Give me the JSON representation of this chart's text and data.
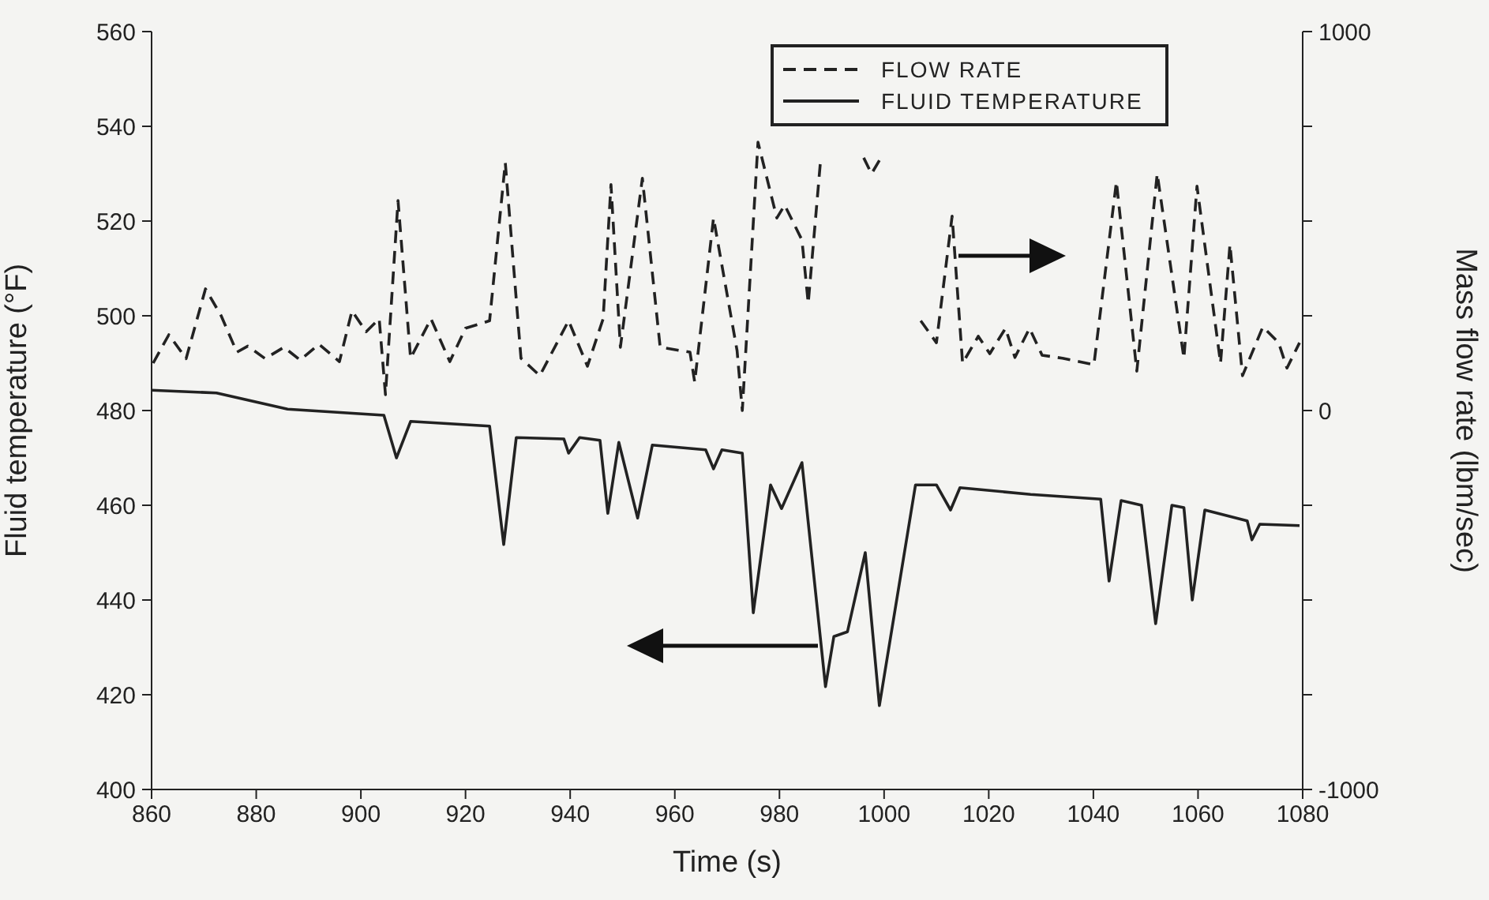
{
  "chart_data": {
    "type": "line",
    "xlabel": "Time (s)",
    "ylabel": "Fluid temperature (°F)",
    "y2label": "Mass flow rate (lbm/sec)",
    "xlim": [
      860,
      1080
    ],
    "xticks": [
      860,
      880,
      900,
      920,
      940,
      960,
      980,
      1000,
      1020,
      1040,
      1060,
      1080
    ],
    "ylim": [
      400,
      560
    ],
    "yticks": [
      400,
      420,
      440,
      460,
      480,
      500,
      520,
      540,
      560
    ],
    "y2lim": [
      -1000,
      1000
    ],
    "y2ticks": [
      -1000,
      {
        "value": -750,
        "label": null
      },
      {
        "value": -500,
        "label": null
      },
      {
        "value": -250,
        "label": null
      },
      0,
      {
        "value": 250,
        "label": null
      },
      {
        "value": 500,
        "label": null
      },
      {
        "value": 750,
        "label": null
      },
      1000
    ],
    "legend": "top right",
    "grid": false,
    "series": [
      {
        "name": "FLOW RATE",
        "color": "#222222",
        "axis": "y2",
        "line_style": "dashed",
        "x": [
          860.3,
          863.3,
          866.6,
          870.3,
          873.3,
          876.3,
          878.4,
          881.7,
          885.3,
          888.4,
          892,
          895.9,
          898.3,
          901,
          903.5,
          904.7,
          907.1,
          909.5,
          913.4,
          917,
          920,
          924.6,
          927.6,
          930.6,
          934.2,
          937.5,
          939.7,
          943.3,
          946.3,
          947.8,
          949.6,
          953.8,
          957.2,
          962.9,
          963.8,
          967.4,
          971.9,
          972.9,
          975.9,
          979.5,
          981,
          984.3,
          985.5,
          987.9,
          991,
          996.1,
          997.6,
          999.4,
          1002,
          1007,
          1010,
          1013,
          1015,
          1018,
          1020.2,
          1023.2,
          1025,
          1027.8,
          1030.2,
          1034.1,
          1040.1,
          1044.4,
          1048.3,
          1052.2,
          1057.3,
          1059.8,
          1064.3,
          1066.1,
          1068.5,
          1072.4,
          1075.4,
          1077,
          1079.4
        ],
        "values": [
          125,
          200,
          137,
          321,
          250,
          154,
          170,
          137,
          167,
          133,
          175,
          129,
          263,
          208,
          242,
          42,
          554,
          138,
          242,
          129,
          217,
          237,
          654,
          138,
          92,
          179,
          237,
          117,
          242,
          596,
          167,
          613,
          167,
          154,
          75,
          508,
          158,
          0,
          708,
          508,
          542,
          450,
          283,
          667,
          null,
          667,
          625,
          667,
          null,
          237,
          179,
          513,
          125,
          196,
          150,
          217,
          140,
          217,
          146,
          138,
          121,
          604,
          104,
          625,
          138,
          592,
          125,
          438,
          92,
          221,
          179,
          112,
          179
        ]
      },
      {
        "name": "FLUID TEMPERATURE",
        "color": "#222222",
        "line_style": "solid",
        "x": [
          860,
          872.4,
          886,
          904.4,
          906.8,
          909.5,
          924.6,
          927.3,
          929.7,
          938.8,
          939.7,
          941.8,
          945.7,
          947.2,
          949.3,
          952.9,
          955.7,
          965.9,
          967.4,
          969,
          972.9,
          975,
          978.3,
          980.4,
          984.3,
          988.8,
          990.4,
          993,
          996.4,
          999.1,
          1006,
          1010,
          1012.7,
          1014.5,
          1028,
          1041.4,
          1043,
          1045.3,
          1049.2,
          1051.9,
          1055,
          1057.3,
          1058.9,
          1061.3,
          1069.4,
          1070.3,
          1071.8,
          1079.4
        ],
        "values": [
          484.3,
          483.7,
          480.3,
          479,
          470,
          477.7,
          476.7,
          451.7,
          474.3,
          474,
          471,
          474.3,
          473.7,
          458.3,
          473.3,
          457.3,
          472.7,
          471.7,
          467.7,
          471.7,
          471,
          437.3,
          464.3,
          459.3,
          469,
          421.7,
          432.3,
          433.3,
          450,
          417.7,
          464.3,
          464.3,
          459,
          463.7,
          462.3,
          461.3,
          444,
          461,
          460,
          435,
          460,
          459.5,
          440,
          459,
          456.7,
          452.7,
          456,
          455.7
        ]
      }
    ]
  }
}
